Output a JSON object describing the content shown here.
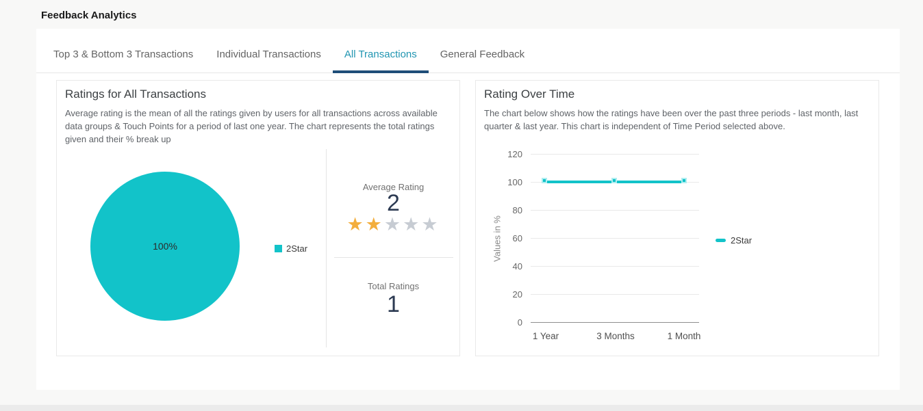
{
  "page": {
    "title": "Feedback Analytics"
  },
  "tabs": {
    "active_index": 2,
    "items": [
      {
        "label": "Top 3 & Bottom 3 Transactions"
      },
      {
        "label": "Individual Transactions"
      },
      {
        "label": "All Transactions"
      },
      {
        "label": "General Feedback"
      }
    ]
  },
  "left_card": {
    "title": "Ratings for All Transactions",
    "description": "Average rating is the mean of all the ratings given by users for all transactions across available data groups & Touch Points for a period of last one year. The chart represents the total ratings given and their % break up",
    "pie_label": "100%",
    "legend_label": "2Star",
    "average": {
      "label": "Average Rating",
      "value": "2",
      "stars_filled": 2,
      "stars_total": 5
    },
    "total": {
      "label": "Total Ratings",
      "value": "1"
    }
  },
  "right_card": {
    "title": "Rating Over Time",
    "description": "The chart below shows how the ratings have been over the past three periods - last month, last quarter & last year. This chart is independent of Time Period selected above.",
    "yaxis_label": "Values in %",
    "yticks": [
      "120",
      "100",
      "80",
      "60",
      "40",
      "20",
      "0"
    ],
    "xlabels": [
      "1 Year",
      "3 Months",
      "1 Month"
    ],
    "legend_label": "2Star"
  },
  "colors": {
    "accent_teal": "#12c3c9",
    "active_tab_text": "#2095b1",
    "active_tab_underline": "#1f4e79",
    "star_filled": "#f3ae3d",
    "star_empty": "#c7ccd3",
    "number_text": "#2c3a52"
  },
  "chart_data": [
    {
      "type": "pie",
      "title": "Ratings for All Transactions",
      "slices": [
        {
          "label": "2Star",
          "value": 100,
          "unit": "%",
          "color": "#12c3c9"
        }
      ],
      "annotations": {
        "average_rating": 2,
        "total_ratings": 1
      },
      "legend_position": "right"
    },
    {
      "type": "line",
      "title": "Rating Over Time",
      "categories": [
        "1 Year",
        "3 Months",
        "1 Month"
      ],
      "series": [
        {
          "name": "2Star",
          "values": [
            100,
            100,
            100
          ],
          "color": "#12c3c9"
        }
      ],
      "ylabel": "Values in %",
      "ylim": [
        0,
        120
      ],
      "ytick_step": 20,
      "grid": true,
      "legend_position": "right",
      "marker": "square"
    }
  ]
}
